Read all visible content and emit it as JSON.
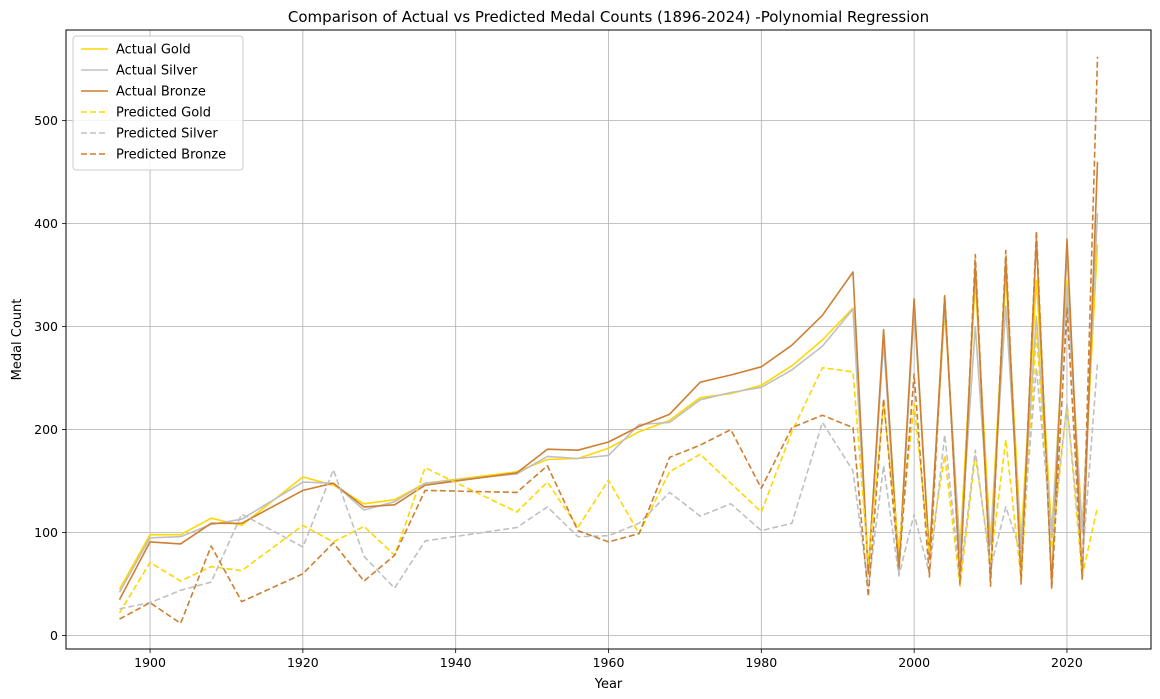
{
  "chart_data": {
    "type": "line",
    "title": "Comparison of Actual vs Predicted Medal Counts (1896-2024) -Polynomial Regression",
    "xlabel": "Year",
    "ylabel": "Medal Count",
    "xlim": [
      1889,
      2031
    ],
    "ylim": [
      -13,
      588
    ],
    "xticks": [
      1900,
      1920,
      1940,
      1960,
      1980,
      2000,
      2020
    ],
    "yticks": [
      0,
      100,
      200,
      300,
      400,
      500
    ],
    "grid": true,
    "legend_position": "top-left",
    "x": [
      1896,
      1900,
      1904,
      1908,
      1912,
      1920,
      1924,
      1928,
      1932,
      1936,
      1948,
      1952,
      1956,
      1960,
      1964,
      1968,
      1972,
      1976,
      1980,
      1984,
      1988,
      1992,
      1994,
      1996,
      1998,
      2000,
      2002,
      2004,
      2006,
      2008,
      2010,
      2012,
      2014,
      2016,
      2018,
      2020,
      2022,
      2024
    ],
    "series": [
      {
        "name": "Actual Gold",
        "color": "#FFD700",
        "dashed": false,
        "values": [
          45,
          98,
          98,
          114,
          107,
          154,
          146,
          128,
          132,
          148,
          159,
          171,
          172,
          182,
          198,
          209,
          231,
          235,
          243,
          262,
          287,
          318,
          62,
          290,
          68,
          320,
          80,
          315,
          85,
          345,
          90,
          350,
          92,
          345,
          100,
          345,
          105,
          380
        ]
      },
      {
        "name": "Actual Silver",
        "color": "#C0C0C0",
        "dashed": false,
        "values": [
          42,
          95,
          96,
          108,
          113,
          149,
          148,
          122,
          130,
          148,
          157,
          174,
          172,
          175,
          205,
          207,
          229,
          236,
          241,
          258,
          281,
          317,
          60,
          285,
          60,
          318,
          78,
          320,
          80,
          300,
          88,
          320,
          85,
          310,
          95,
          340,
          100,
          410
        ]
      },
      {
        "name": "Actual Bronze",
        "color": "#CD7F32",
        "dashed": false,
        "values": [
          35,
          91,
          89,
          109,
          109,
          141,
          148,
          125,
          127,
          146,
          158,
          181,
          180,
          188,
          203,
          215,
          246,
          253,
          261,
          282,
          311,
          353,
          60,
          297,
          65,
          327,
          75,
          329,
          55,
          360,
          55,
          365,
          55,
          385,
          50,
          385,
          55,
          460
        ]
      },
      {
        "name": "Predicted Gold",
        "color": "#FFD700",
        "dashed": true,
        "values": [
          22,
          71,
          53,
          67,
          63,
          107,
          91,
          106,
          78,
          163,
          120,
          149,
          105,
          151,
          99,
          159,
          176,
          148,
          120,
          198,
          260,
          256,
          70,
          225,
          85,
          225,
          80,
          175,
          48,
          175,
          72,
          190,
          55,
          295,
          85,
          225,
          58,
          125
        ]
      },
      {
        "name": "Predicted Silver",
        "color": "#C0C0C0",
        "dashed": true,
        "values": [
          26,
          32,
          44,
          52,
          118,
          86,
          161,
          77,
          46,
          92,
          105,
          125,
          96,
          97,
          109,
          139,
          116,
          128,
          102,
          109,
          207,
          160,
          47,
          165,
          58,
          118,
          60,
          195,
          55,
          180,
          65,
          125,
          80,
          260,
          95,
          225,
          70,
          265
        ]
      },
      {
        "name": "Predicted Bronze",
        "color": "#CD7F32",
        "dashed": true,
        "values": [
          16,
          32,
          12,
          87,
          33,
          60,
          90,
          53,
          78,
          141,
          139,
          165,
          102,
          91,
          99,
          173,
          185,
          200,
          143,
          202,
          214,
          202,
          38,
          230,
          65,
          254,
          57,
          330,
          50,
          370,
          48,
          374,
          50,
          393,
          45,
          318,
          55,
          562
        ]
      }
    ]
  }
}
